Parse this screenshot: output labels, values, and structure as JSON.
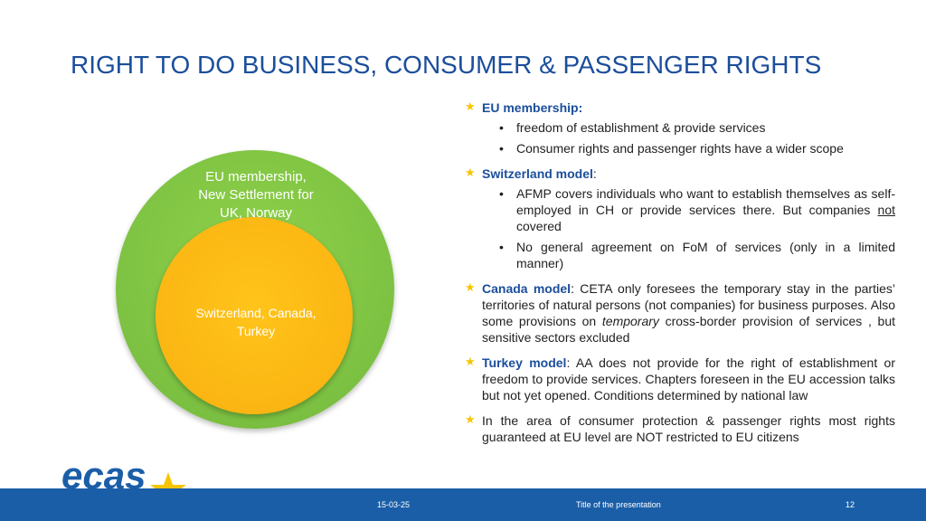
{
  "slide": {
    "title": "RIGHT TO DO BUSINESS, CONSUMER & PASSENGER RIGHTS",
    "venn": {
      "outer_label": "EU membership,\nNew Settlement for\nUK, Norway",
      "inner_label": "Switzerland, Canada,\nTurkey",
      "outer_color": "#7cc142",
      "inner_color": "#fbb613"
    },
    "points": [
      {
        "heading": "EU membership:",
        "subs": [
          "freedom of establishment & provide services",
          "Consumer rights and passenger rights have a wider scope"
        ]
      },
      {
        "heading": "Switzerland model",
        "after_heading": ":",
        "sub1": {
          "pre": "AFMP covers individuals who want to establish themselves as self-employed in CH or provide services there. But companies ",
          "underlined": "not",
          "post": " covered"
        },
        "sub2": "No general agreement on FoM of services  (only  in a limited manner)"
      },
      {
        "heading": "Canada model",
        "pre": ": CETA only foresees the temporary stay in the parties’ territories of natural persons (not companies) for business purposes. Also some provisions on ",
        "italic": "temporary",
        "post": " cross-border provision of services , but sensitive sectors excluded"
      },
      {
        "heading": "Turkey model",
        "text": ": AA does not provide for the right of establishment or freedom to provide services. Chapters foreseen in the EU accession talks but not yet opened. Conditions determined by national law"
      },
      {
        "text": "In the area of consumer protection & passenger rights most rights guaranteed at EU level are NOT restricted to EU citizens"
      }
    ],
    "bullet_icon": "star-icon",
    "accent_color": "#1b4e9b",
    "star_color": "#f7c500"
  },
  "logo": {
    "text": "ecas"
  },
  "footer": {
    "date": "15-03-25",
    "title": "Title of the presentation",
    "page": "12",
    "bar_color": "#1b5ea8"
  }
}
